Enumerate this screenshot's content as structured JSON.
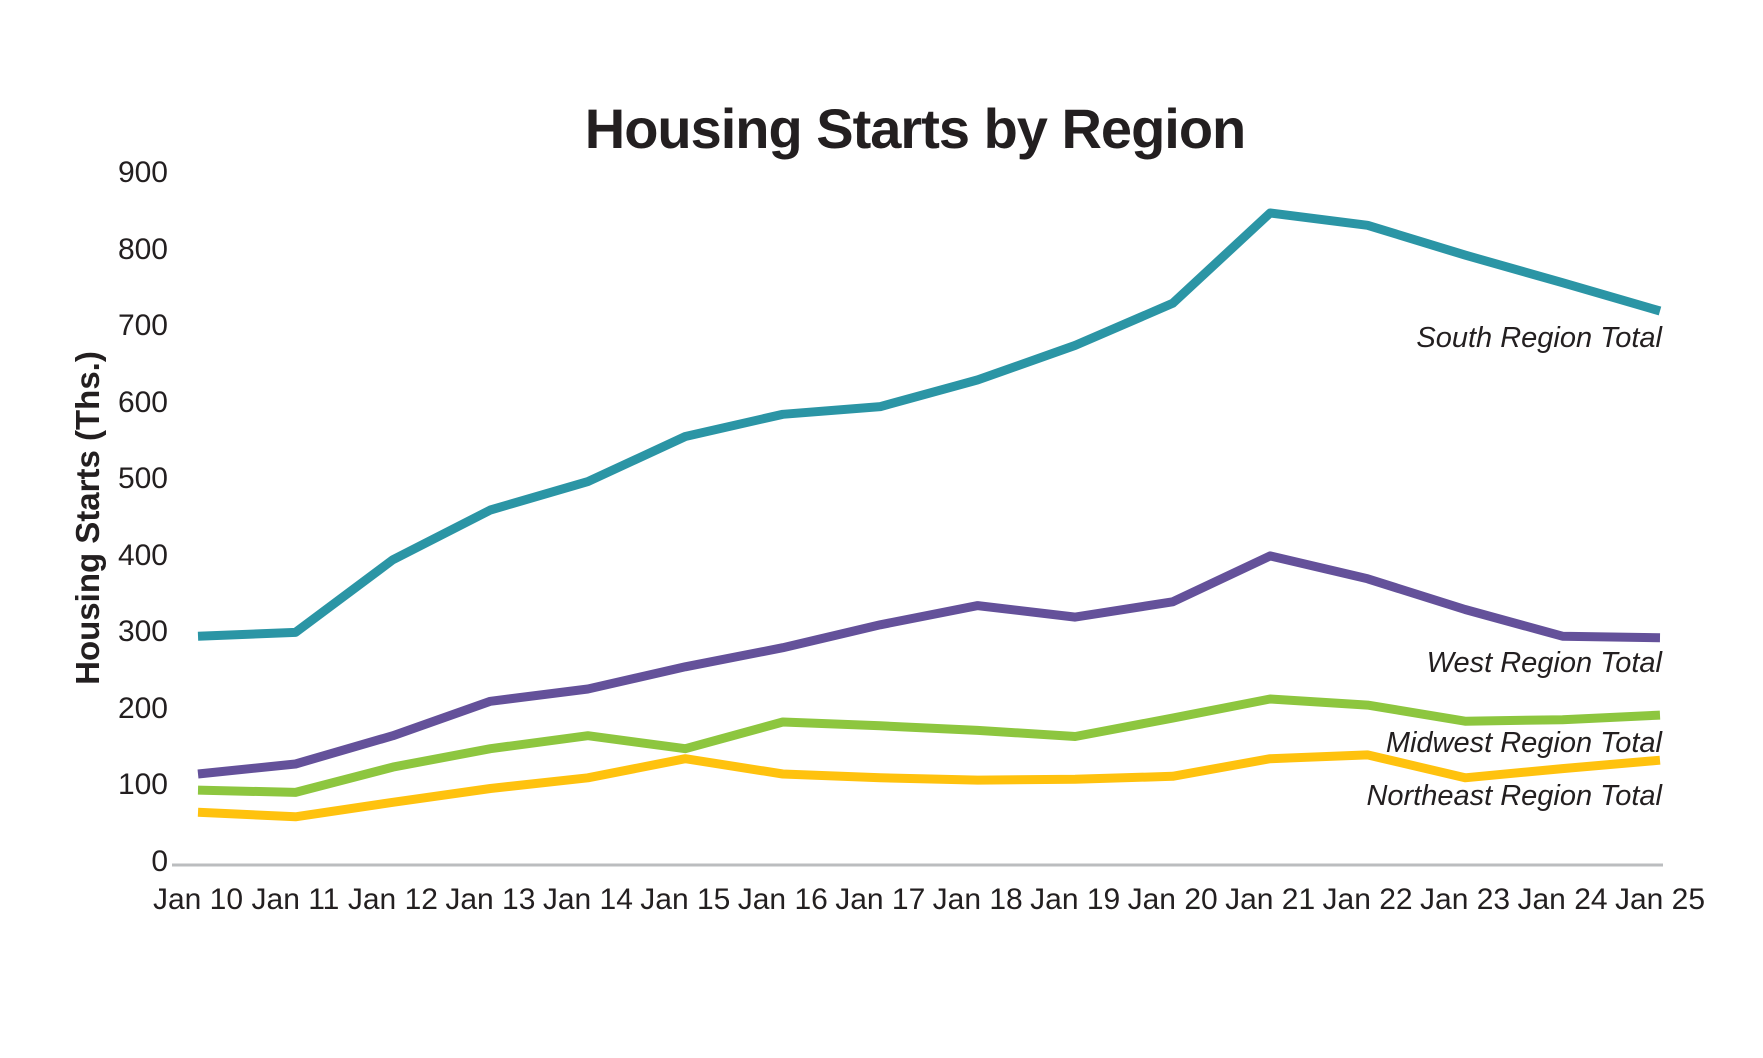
{
  "page": {
    "background": "#FFFFFF"
  },
  "chart_data": {
    "type": "line",
    "title": "Housing Starts by Region",
    "xlabel": "",
    "ylabel": "Housing Starts (Ths.)",
    "categories": [
      "Jan 10",
      "Jan 11",
      "Jan 12",
      "Jan 13",
      "Jan 14",
      "Jan 15",
      "Jan 16",
      "Jan 17",
      "Jan 18",
      "Jan 19",
      "Jan 20",
      "Jan 21",
      "Jan 22",
      "Jan 23",
      "Jan 24",
      "Jan 25"
    ],
    "series": [
      {
        "name": "South Region Total",
        "color": "#2B95A5",
        "values": [
          295,
          300,
          395,
          460,
          497,
          556,
          585,
          595,
          630,
          675,
          730,
          848,
          832,
          793,
          757,
          720
        ]
      },
      {
        "name": "West Region Total",
        "color": "#64519A",
        "values": [
          115,
          128,
          165,
          210,
          226,
          255,
          280,
          310,
          335,
          320,
          340,
          400,
          370,
          330,
          295,
          293
        ]
      },
      {
        "name": "Midwest Region Total",
        "color": "#8DC63F",
        "values": [
          94,
          91,
          124,
          148,
          165,
          148,
          183,
          178,
          172,
          164,
          188,
          213,
          205,
          184,
          186,
          192
        ]
      },
      {
        "name": "Northeast Region Total",
        "color": "#FFC20E",
        "values": [
          65,
          59,
          78,
          96,
          110,
          135,
          115,
          110,
          107,
          108,
          112,
          135,
          140,
          110,
          122,
          133
        ]
      }
    ],
    "y_axis": {
      "min": 0,
      "max": 900,
      "step": 100,
      "ticks": [
        "0",
        "100",
        "200",
        "300",
        "400",
        "500",
        "600",
        "700",
        "800",
        "900"
      ]
    },
    "grid": "none",
    "legend_position": "right-end-of-line-labels",
    "axis_line_color": "#BBBDBF",
    "text_color": "#231F20",
    "line_width": 9
  }
}
